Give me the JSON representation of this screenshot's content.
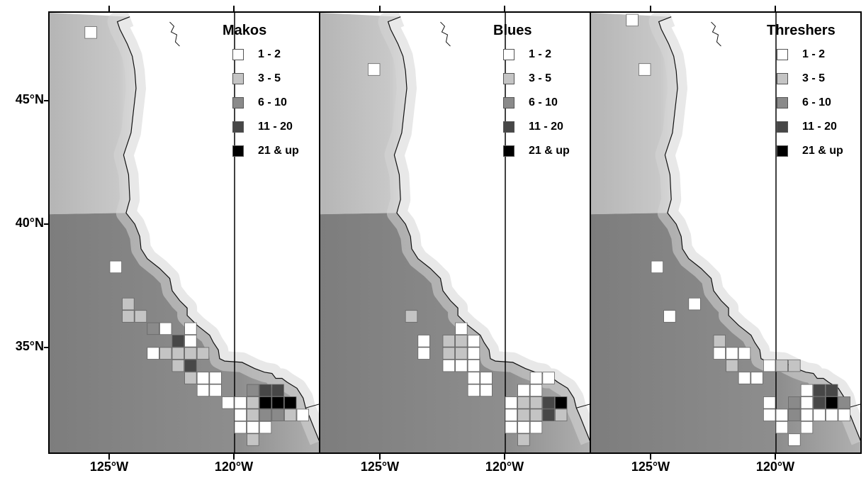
{
  "axes": {
    "lat_labels": [
      "45°N",
      "40°N",
      "35°N"
    ],
    "lon_labels": [
      "125°W",
      "120°W"
    ]
  },
  "legend_scale": {
    "classes": [
      {
        "label": "1 - 2",
        "color": "#ffffff"
      },
      {
        "label": "3 - 5",
        "color": "#c4c4c4"
      },
      {
        "label": "6 - 10",
        "color": "#8a8a8a"
      },
      {
        "label": "11 - 20",
        "color": "#474747"
      },
      {
        "label": "21 & up",
        "color": "#000000"
      }
    ]
  },
  "panels": [
    {
      "title": "Makos",
      "cells": [
        [
          -125.75,
          47.75,
          0
        ],
        [
          -124.75,
          38.25,
          0
        ],
        [
          -124.25,
          36.75,
          1
        ],
        [
          -124.25,
          36.25,
          1
        ],
        [
          -123.75,
          36.25,
          1
        ],
        [
          -123.25,
          35.75,
          2
        ],
        [
          -122.75,
          35.75,
          0
        ],
        [
          -123.25,
          34.75,
          0
        ],
        [
          -122.75,
          34.75,
          1
        ],
        [
          -122.25,
          34.75,
          1
        ],
        [
          -122.25,
          34.25,
          1
        ],
        [
          -121.75,
          35.75,
          0
        ],
        [
          -121.75,
          35.25,
          0
        ],
        [
          -121.75,
          34.75,
          1
        ],
        [
          -121.25,
          34.75,
          1
        ],
        [
          -121.75,
          34.25,
          3
        ],
        [
          -122.25,
          35.25,
          3
        ],
        [
          -121.75,
          33.75,
          1
        ],
        [
          -121.25,
          33.75,
          0
        ],
        [
          -121.25,
          33.25,
          0
        ],
        [
          -120.75,
          33.25,
          0
        ],
        [
          -120.75,
          33.75,
          0
        ],
        [
          -120.25,
          32.75,
          0
        ],
        [
          -119.75,
          32.75,
          0
        ],
        [
          -119.25,
          32.75,
          1
        ],
        [
          -119.25,
          33.25,
          2
        ],
        [
          -118.75,
          33.25,
          3
        ],
        [
          -118.25,
          33.25,
          3
        ],
        [
          -118.75,
          32.75,
          4
        ],
        [
          -118.25,
          32.75,
          4
        ],
        [
          -117.75,
          32.75,
          4
        ],
        [
          -118.75,
          32.25,
          2
        ],
        [
          -118.25,
          32.25,
          2
        ],
        [
          -117.75,
          32.25,
          1
        ],
        [
          -119.25,
          32.25,
          1
        ],
        [
          -119.75,
          32.25,
          0
        ],
        [
          -119.25,
          31.75,
          0
        ],
        [
          -118.75,
          31.75,
          0
        ],
        [
          -119.75,
          31.75,
          0
        ],
        [
          -119.25,
          31.25,
          1
        ],
        [
          -117.25,
          32.25,
          0
        ]
      ]
    },
    {
      "title": "Blues",
      "cells": [
        [
          -125.25,
          46.25,
          0
        ],
        [
          -123.75,
          36.25,
          1
        ],
        [
          -123.25,
          35.25,
          0
        ],
        [
          -123.25,
          34.75,
          0
        ],
        [
          -122.25,
          35.25,
          1
        ],
        [
          -122.25,
          34.75,
          1
        ],
        [
          -121.75,
          35.75,
          0
        ],
        [
          -121.75,
          35.25,
          1
        ],
        [
          -121.25,
          35.25,
          0
        ],
        [
          -122.25,
          34.25,
          0
        ],
        [
          -121.75,
          34.25,
          0
        ],
        [
          -121.75,
          34.75,
          1
        ],
        [
          -121.25,
          34.75,
          0
        ],
        [
          -121.25,
          34.25,
          0
        ],
        [
          -121.25,
          33.75,
          0
        ],
        [
          -120.75,
          33.75,
          0
        ],
        [
          -120.75,
          33.25,
          0
        ],
        [
          -121.25,
          33.25,
          0
        ],
        [
          -119.75,
          32.75,
          0
        ],
        [
          -119.25,
          32.75,
          1
        ],
        [
          -119.25,
          33.25,
          0
        ],
        [
          -118.75,
          33.25,
          0
        ],
        [
          -118.75,
          32.75,
          1
        ],
        [
          -118.25,
          32.75,
          3
        ],
        [
          -117.75,
          32.75,
          4
        ],
        [
          -118.25,
          32.25,
          3
        ],
        [
          -117.75,
          32.25,
          1
        ],
        [
          -118.75,
          32.25,
          1
        ],
        [
          -119.25,
          32.25,
          1
        ],
        [
          -119.75,
          32.25,
          0
        ],
        [
          -119.75,
          31.75,
          0
        ],
        [
          -119.25,
          31.75,
          0
        ],
        [
          -118.75,
          31.75,
          0
        ],
        [
          -119.25,
          31.25,
          1
        ],
        [
          -118.25,
          33.75,
          0
        ],
        [
          -118.75,
          33.75,
          0
        ]
      ]
    },
    {
      "title": "Threshers",
      "cells": [
        [
          -125.75,
          48.25,
          0
        ],
        [
          -125.25,
          46.25,
          0
        ],
        [
          -124.75,
          38.25,
          0
        ],
        [
          -124.25,
          36.25,
          0
        ],
        [
          -123.25,
          36.75,
          0
        ],
        [
          -122.25,
          35.25,
          1
        ],
        [
          -122.25,
          34.75,
          0
        ],
        [
          -121.75,
          34.75,
          0
        ],
        [
          -121.25,
          34.75,
          0
        ],
        [
          -121.75,
          34.25,
          1
        ],
        [
          -121.25,
          33.75,
          0
        ],
        [
          -120.75,
          33.75,
          0
        ],
        [
          -120.25,
          34.25,
          0
        ],
        [
          -119.75,
          34.25,
          1
        ],
        [
          -119.25,
          34.25,
          1
        ],
        [
          -118.25,
          33.25,
          3
        ],
        [
          -117.75,
          33.25,
          3
        ],
        [
          -118.25,
          32.75,
          3
        ],
        [
          -117.75,
          32.75,
          4
        ],
        [
          -117.25,
          32.75,
          2
        ],
        [
          -118.75,
          33.25,
          0
        ],
        [
          -119.25,
          32.75,
          2
        ],
        [
          -118.75,
          32.75,
          0
        ],
        [
          -119.25,
          32.25,
          2
        ],
        [
          -118.75,
          32.25,
          0
        ],
        [
          -118.25,
          32.25,
          0
        ],
        [
          -117.75,
          32.25,
          0
        ],
        [
          -117.25,
          32.25,
          0
        ],
        [
          -120.25,
          32.75,
          0
        ],
        [
          -120.25,
          32.25,
          0
        ],
        [
          -119.75,
          32.25,
          0
        ],
        [
          -119.75,
          31.75,
          0
        ],
        [
          -119.25,
          31.25,
          0
        ],
        [
          -118.75,
          31.75,
          0
        ]
      ]
    }
  ]
}
